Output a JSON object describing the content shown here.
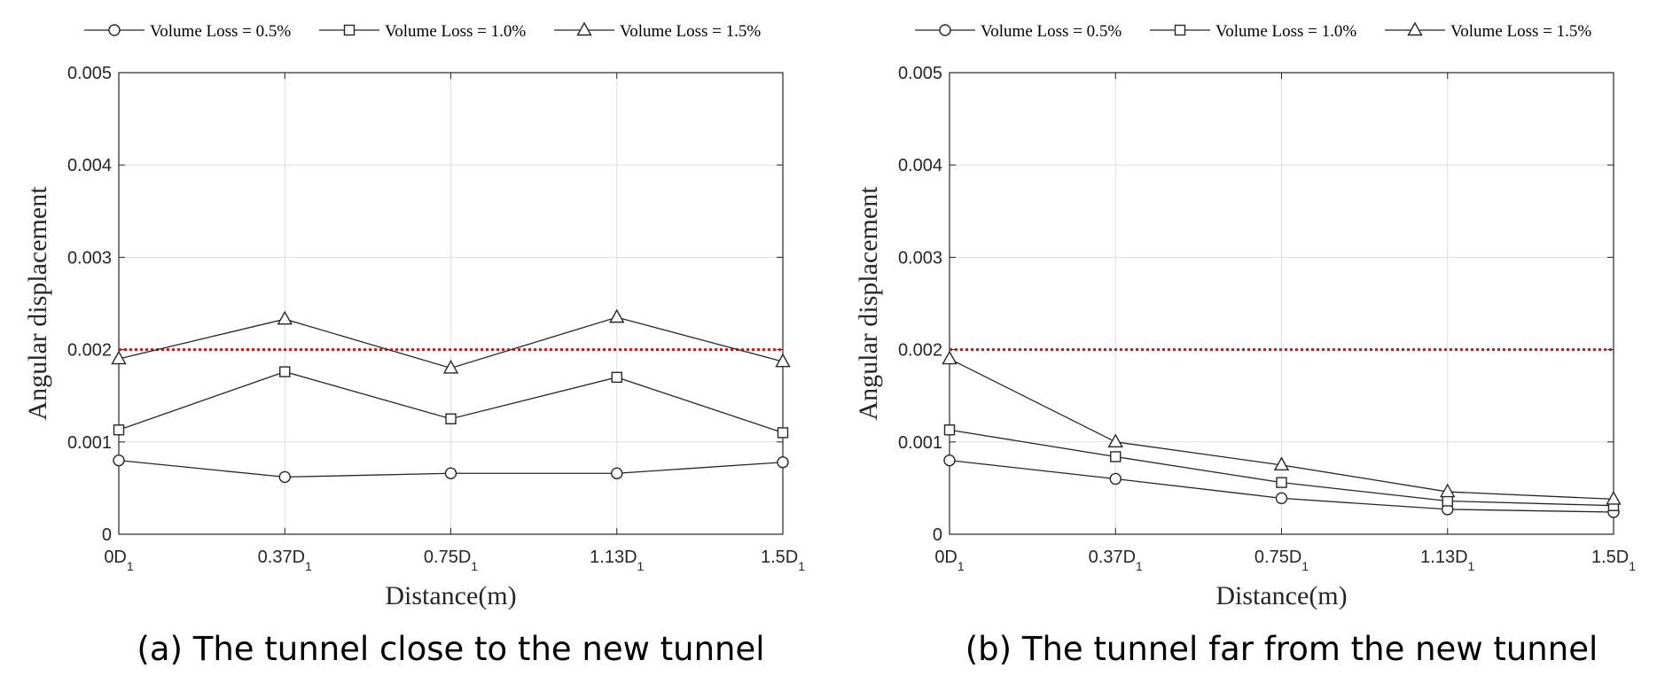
{
  "chart_data": [
    {
      "type": "line",
      "caption": "(a) The tunnel close to the new tunnel",
      "xlabel": "Distance(m)",
      "ylabel": "Angular displacement",
      "categories": [
        "0D1",
        "0.37D1",
        "0.75D1",
        "1.13D1",
        "1.5D1"
      ],
      "x_tick_labels": [
        {
          "main": "0D",
          "sub": "1"
        },
        {
          "main": "0.37D",
          "sub": "1"
        },
        {
          "main": "0.75D",
          "sub": "1"
        },
        {
          "main": "1.13D",
          "sub": "1"
        },
        {
          "main": "1.5D",
          "sub": "1"
        }
      ],
      "ylim": [
        0,
        0.005
      ],
      "y_ticks": [
        0,
        0.001,
        0.002,
        0.003,
        0.004,
        0.005
      ],
      "y_tick_labels": [
        "0",
        "0.001",
        "0.002",
        "0.003",
        "0.004",
        "0.005"
      ],
      "grid": true,
      "legend_position": "top",
      "threshold": {
        "value": 0.002,
        "color": "#ff0000",
        "style": "dotted"
      },
      "series": [
        {
          "name": "Volume Loss = 0.5%",
          "marker": "circle",
          "values": [
            0.0008,
            0.00062,
            0.00066,
            0.00066,
            0.00078
          ]
        },
        {
          "name": "Volume Loss = 1.0%",
          "marker": "square",
          "values": [
            0.00113,
            0.00176,
            0.00125,
            0.0017,
            0.0011
          ]
        },
        {
          "name": "Volume Loss = 1.5%",
          "marker": "triangle",
          "values": [
            0.0019,
            0.00233,
            0.0018,
            0.00235,
            0.00187
          ]
        }
      ]
    },
    {
      "type": "line",
      "caption": "(b) The tunnel far from the new tunnel",
      "xlabel": "Distance(m)",
      "ylabel": "Angular displacement",
      "categories": [
        "0D1",
        "0.37D1",
        "0.75D1",
        "1.13D1",
        "1.5D1"
      ],
      "x_tick_labels": [
        {
          "main": "0D",
          "sub": "1"
        },
        {
          "main": "0.37D",
          "sub": "1"
        },
        {
          "main": "0.75D",
          "sub": "1"
        },
        {
          "main": "1.13D",
          "sub": "1"
        },
        {
          "main": "1.5D",
          "sub": "1"
        }
      ],
      "ylim": [
        0,
        0.005
      ],
      "y_ticks": [
        0,
        0.001,
        0.002,
        0.003,
        0.004,
        0.005
      ],
      "y_tick_labels": [
        "0",
        "0.001",
        "0.002",
        "0.003",
        "0.004",
        "0.005"
      ],
      "grid": true,
      "legend_position": "top",
      "threshold": {
        "value": 0.002,
        "color": "#ff0000",
        "style": "dotted"
      },
      "series": [
        {
          "name": "Volume Loss = 0.5%",
          "marker": "circle",
          "values": [
            0.0008,
            0.0006,
            0.00039,
            0.00027,
            0.00024
          ]
        },
        {
          "name": "Volume Loss = 1.0%",
          "marker": "square",
          "values": [
            0.00113,
            0.00084,
            0.00056,
            0.00036,
            0.00031
          ]
        },
        {
          "name": "Volume Loss = 1.5%",
          "marker": "triangle",
          "values": [
            0.0019,
            0.001,
            0.00075,
            0.00046,
            0.00038
          ]
        }
      ]
    }
  ]
}
